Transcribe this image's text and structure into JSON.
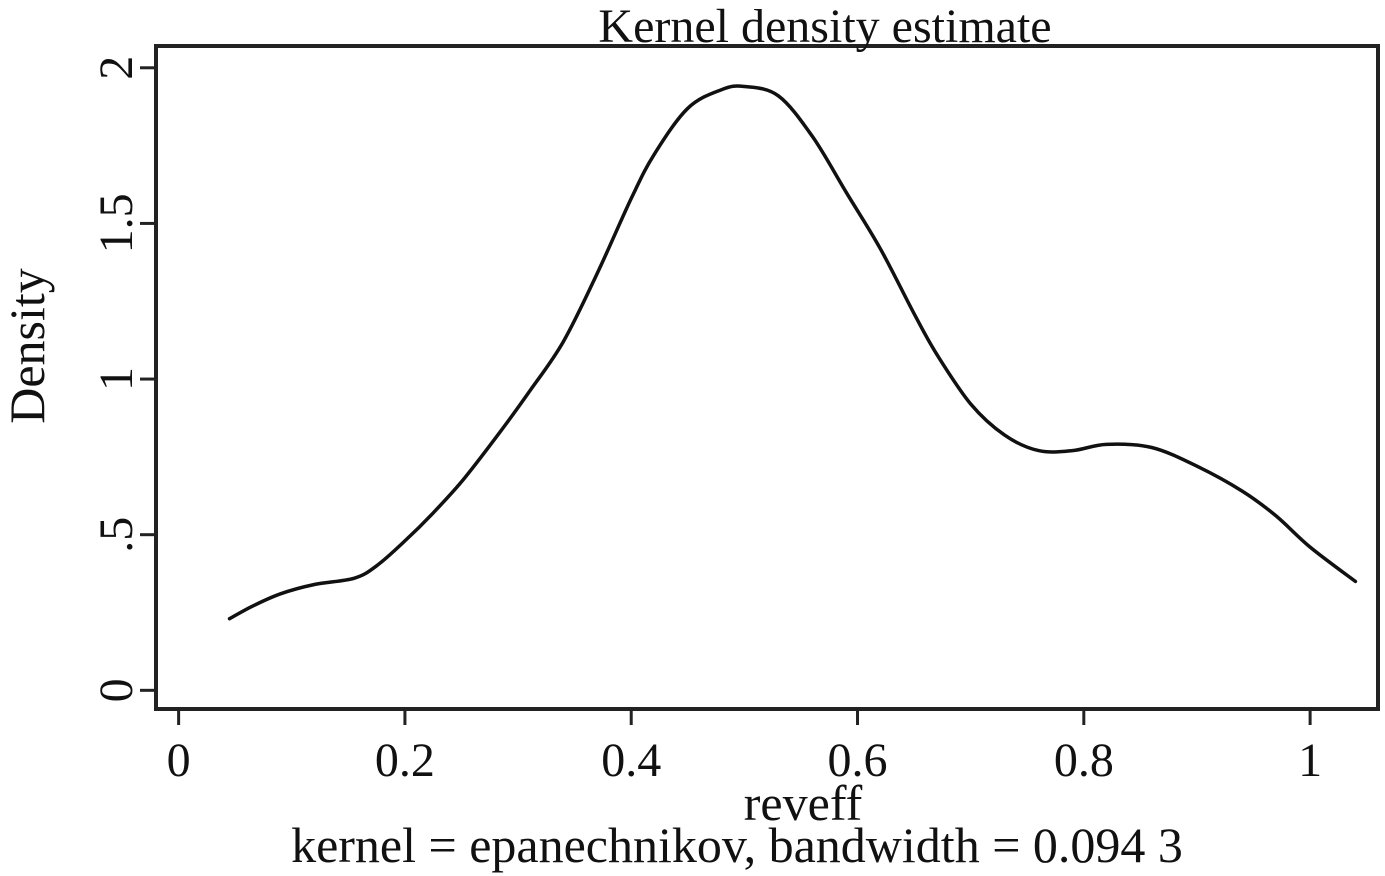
{
  "chart_data": {
    "type": "line",
    "title": "Kernel density estimate",
    "xlabel": "reveff",
    "ylabel": "Density",
    "note": "kernel = epanechnikov, bandwidth = 0.094 3",
    "xlim": [
      -0.02,
      1.06
    ],
    "ylim": [
      -0.06,
      2.07
    ],
    "x_ticks": [
      0,
      0.2,
      0.4,
      0.6,
      0.8,
      1
    ],
    "x_tick_labels": [
      "0",
      "0.2",
      "0.4",
      "0.6",
      "0.8",
      "1"
    ],
    "y_ticks": [
      0,
      0.5,
      1,
      1.5,
      2
    ],
    "y_tick_labels": [
      "0",
      ".5",
      "1",
      "1.5",
      "2"
    ],
    "grid": false,
    "legend": "none",
    "series": [
      {
        "color": "#111111",
        "x": [
          0.045,
          0.065,
          0.09,
          0.12,
          0.155,
          0.175,
          0.2,
          0.225,
          0.25,
          0.28,
          0.31,
          0.34,
          0.37,
          0.4,
          0.42,
          0.45,
          0.48,
          0.5,
          0.53,
          0.56,
          0.59,
          0.62,
          0.65,
          0.67,
          0.7,
          0.73,
          0.76,
          0.79,
          0.82,
          0.86,
          0.9,
          0.94,
          0.97,
          1.0,
          1.04
        ],
        "y": [
          0.23,
          0.27,
          0.31,
          0.34,
          0.36,
          0.4,
          0.48,
          0.57,
          0.67,
          0.81,
          0.96,
          1.12,
          1.34,
          1.58,
          1.72,
          1.87,
          1.93,
          1.94,
          1.91,
          1.78,
          1.6,
          1.42,
          1.21,
          1.08,
          0.92,
          0.82,
          0.77,
          0.77,
          0.79,
          0.78,
          0.72,
          0.64,
          0.56,
          0.46,
          0.35
        ]
      }
    ]
  }
}
